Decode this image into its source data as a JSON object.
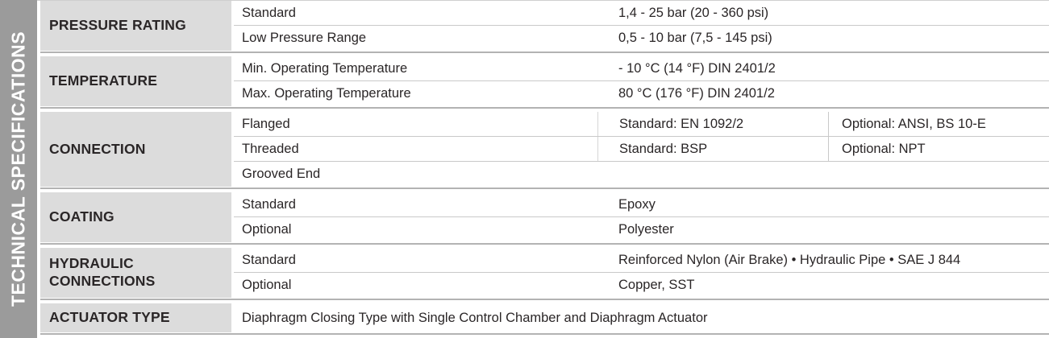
{
  "sidebar": {
    "title": "TECHNICAL SPECIFICATIONS"
  },
  "colors": {
    "sidebar_bg": "#9b9b9b",
    "category_bg": "#dcdcdc",
    "row_border": "#c9c9c9",
    "group_border": "#b3b3b3",
    "text": "#2a2627"
  },
  "groups": [
    {
      "category": "PRESSURE RATING",
      "rows": [
        {
          "label": "Standard",
          "value": "1,4 - 25 bar (20 - 360 psi)"
        },
        {
          "label": "Low Pressure Range",
          "value": "0,5 - 10 bar (7,5 - 145 psi)"
        }
      ]
    },
    {
      "category": "TEMPERATURE",
      "rows": [
        {
          "label": "Min. Operating Temperature",
          "value": "- 10 °C (14 °F) DIN 2401/2"
        },
        {
          "label": "Max. Operating Temperature",
          "value": "80 °C (176 °F) DIN 2401/2"
        }
      ]
    },
    {
      "category": "CONNECTION",
      "rows": [
        {
          "label": "Flanged",
          "value": "Standard: EN 1092/2",
          "value2": "Optional: ANSI, BS 10-E"
        },
        {
          "label": "Threaded",
          "value": "Standard: BSP",
          "value2": "Optional: NPT"
        },
        {
          "label": "Grooved End",
          "full": true
        }
      ]
    },
    {
      "category": "COATING",
      "rows": [
        {
          "label": "Standard",
          "value": "Epoxy"
        },
        {
          "label": "Optional",
          "value": "Polyester"
        }
      ]
    },
    {
      "category": "HYDRAULIC CONNECTIONS",
      "rows": [
        {
          "label": "Standard",
          "value": "Reinforced Nylon (Air Brake) • Hydraulic Pipe • SAE J 844"
        },
        {
          "label": "Optional",
          "value": "Copper, SST"
        }
      ]
    },
    {
      "category": "ACTUATOR TYPE",
      "tall": true,
      "rows": [
        {
          "label": "Diaphragm Closing Type with Single Control Chamber and Diaphragm Actuator",
          "full": true
        }
      ]
    }
  ]
}
